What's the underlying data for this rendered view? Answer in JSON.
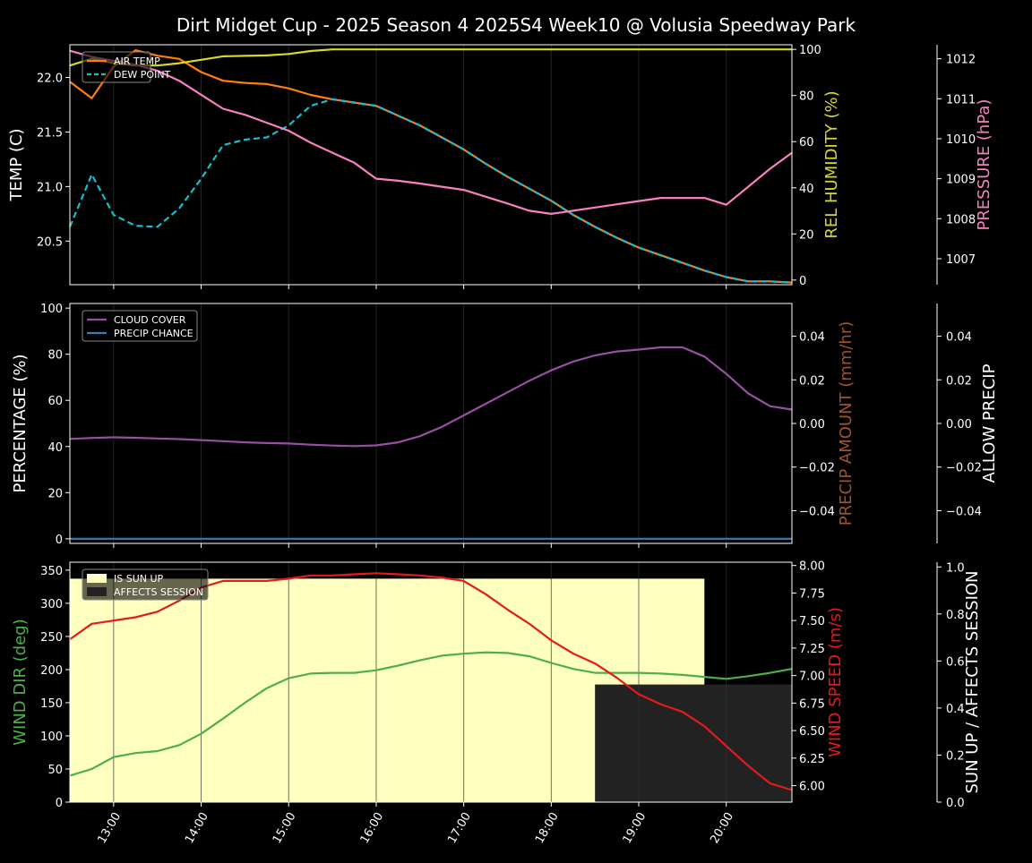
{
  "title": "Dirt Midget Cup - 2025 Season 4 2025S4 Week10 @ Volusia Speedway Park",
  "colors": {
    "background": "#000000",
    "axes": "#ffffff",
    "air_temp": "#ff7f0e",
    "dew_point": "#17becf",
    "humidity": "#d8d82a",
    "pressure": "#f781bf",
    "cloud": "#984ea3",
    "precip_chance": "#377eb8",
    "precip_amount": "#a0522d",
    "wind_dir": "#4daf4a",
    "wind_speed": "#e41a1c",
    "sun_up": "#ffffc0",
    "affects_session": "#222222",
    "grid": "#333333"
  },
  "x_ticks": [
    "13:00",
    "14:00",
    "15:00",
    "16:00",
    "17:00",
    "18:00",
    "19:00",
    "20:00"
  ],
  "chart_data": [
    {
      "type": "line",
      "x_hours": [
        12.5,
        12.75,
        13.0,
        13.25,
        13.5,
        13.75,
        14.0,
        14.25,
        14.5,
        14.75,
        15.0,
        15.25,
        15.5,
        15.75,
        16.0,
        16.25,
        16.5,
        16.75,
        17.0,
        17.25,
        17.5,
        17.75,
        18.0,
        18.25,
        18.5,
        18.75,
        19.0,
        19.25,
        19.5,
        19.75,
        20.0,
        20.25,
        20.5,
        20.75
      ],
      "left_axis": {
        "label": "TEMP (C)",
        "ylim": [
          20.1,
          22.3
        ],
        "ticks": [
          "20.5",
          "21.0",
          "21.5",
          "22.0"
        ],
        "tick_values": [
          20.5,
          21.0,
          21.5,
          22.0
        ]
      },
      "right_axis": {
        "label": "REL HUMIDITY (%)",
        "ylim": [
          -2,
          102
        ],
        "ticks": [
          "0",
          "20",
          "40",
          "60",
          "80",
          "100"
        ],
        "tick_values": [
          0,
          20,
          40,
          60,
          80,
          100
        ]
      },
      "far_axis": {
        "label": "PRESSURE (hPa)",
        "ylim": [
          1006.35,
          1012.35
        ],
        "ticks": [
          "1007",
          "1008",
          "1009",
          "1010",
          "1011",
          "1012"
        ],
        "tick_values": [
          1007,
          1008,
          1009,
          1010,
          1011,
          1012
        ]
      },
      "legend": [
        "AIR TEMP",
        "DEW POINT"
      ],
      "legend_placement": "top-left",
      "series": [
        {
          "name": "AIR TEMP",
          "axis": "left",
          "style": "solid",
          "color_key": "air_temp",
          "values": [
            21.96,
            21.81,
            22.1,
            22.25,
            22.2,
            22.17,
            22.05,
            21.97,
            21.95,
            21.94,
            21.9,
            21.84,
            21.8,
            21.77,
            21.74,
            21.65,
            21.56,
            21.45,
            21.34,
            21.21,
            21.09,
            20.98,
            20.87,
            20.74,
            20.63,
            20.53,
            20.44,
            20.37,
            20.3,
            20.23,
            20.17,
            20.13,
            20.13,
            20.12
          ]
        },
        {
          "name": "DEW POINT",
          "axis": "left",
          "style": "dashed",
          "color_key": "dew_point",
          "values": [
            20.63,
            21.11,
            20.74,
            20.64,
            20.63,
            20.8,
            21.07,
            21.38,
            21.43,
            21.45,
            21.56,
            21.74,
            21.8,
            21.77,
            21.74,
            21.65,
            21.56,
            21.45,
            21.34,
            21.21,
            21.09,
            20.98,
            20.87,
            20.74,
            20.63,
            20.53,
            20.44,
            20.37,
            20.3,
            20.23,
            20.17,
            20.13,
            20.13,
            20.12
          ]
        },
        {
          "axis": "right",
          "style": "solid",
          "color_key": "humidity",
          "values": [
            93,
            96,
            94,
            93,
            93,
            94,
            95.5,
            97,
            97.2,
            97.4,
            98,
            99.3,
            100,
            100,
            100,
            100,
            100,
            100,
            100,
            100,
            100,
            100,
            100,
            100,
            100,
            100,
            100,
            100,
            100,
            100,
            100,
            100,
            100,
            100
          ]
        },
        {
          "axis": "far",
          "style": "solid",
          "color_key": "pressure",
          "values": [
            1012.2,
            1012.05,
            1011.95,
            1011.85,
            1011.7,
            1011.45,
            1011.1,
            1010.75,
            1010.6,
            1010.4,
            1010.2,
            1009.9,
            1009.65,
            1009.4,
            1009.0,
            1008.95,
            1008.88,
            1008.8,
            1008.72,
            1008.55,
            1008.38,
            1008.2,
            1008.12,
            1008.2,
            1008.28,
            1008.36,
            1008.44,
            1008.52,
            1008.52,
            1008.52,
            1008.35,
            1008.8,
            1009.25,
            1009.65
          ]
        }
      ]
    },
    {
      "type": "line",
      "x_hours": [
        12.5,
        12.75,
        13.0,
        13.25,
        13.5,
        13.75,
        14.0,
        14.25,
        14.5,
        14.75,
        15.0,
        15.25,
        15.5,
        15.75,
        16.0,
        16.25,
        16.5,
        16.75,
        17.0,
        17.25,
        17.5,
        17.75,
        18.0,
        18.25,
        18.5,
        18.75,
        19.0,
        19.25,
        19.5,
        19.75,
        20.0,
        20.25,
        20.5,
        20.75
      ],
      "left_axis": {
        "label": "PERCENTAGE (%)",
        "ylim": [
          -2,
          102
        ],
        "ticks": [
          "0",
          "20",
          "40",
          "60",
          "80",
          "100"
        ],
        "tick_values": [
          0,
          20,
          40,
          60,
          80,
          100
        ]
      },
      "right_axis": {
        "label": "PRECIP AMOUNT (mm/hr)",
        "ylim": [
          -0.055,
          0.055
        ],
        "ticks": [
          "−0.04",
          "−0.02",
          "0.00",
          "0.02",
          "0.04"
        ],
        "tick_values": [
          -0.04,
          -0.02,
          0,
          0.02,
          0.04
        ]
      },
      "far_axis": {
        "label": "ALLOW PRECIP",
        "ylim": [
          -0.055,
          0.055
        ],
        "ticks": [
          "−0.04",
          "−0.02",
          "0.00",
          "0.02",
          "0.04"
        ],
        "tick_values": [
          -0.04,
          -0.02,
          0,
          0.02,
          0.04
        ]
      },
      "legend": [
        "CLOUD COVER",
        "PRECIP CHANCE"
      ],
      "legend_placement": "top-left",
      "series": [
        {
          "name": "CLOUD COVER",
          "axis": "left",
          "style": "solid",
          "color_key": "cloud",
          "values": [
            43.3,
            43.7,
            44.0,
            43.8,
            43.5,
            43.2,
            42.8,
            42.3,
            41.8,
            41.5,
            41.3,
            40.8,
            40.4,
            40.2,
            40.5,
            41.8,
            44.5,
            48.5,
            53.5,
            58.5,
            63.5,
            68.5,
            73.0,
            76.8,
            79.5,
            81.2,
            82.0,
            83.0,
            83.0,
            79.0,
            71.5,
            63.0,
            57.5,
            56.0
          ]
        },
        {
          "name": "PRECIP CHANCE",
          "axis": "left",
          "style": "solid",
          "color_key": "precip_chance",
          "values": [
            0,
            0,
            0,
            0,
            0,
            0,
            0,
            0,
            0,
            0,
            0,
            0,
            0,
            0,
            0,
            0,
            0,
            0,
            0,
            0,
            0,
            0,
            0,
            0,
            0,
            0,
            0,
            0,
            0,
            0,
            0,
            0,
            0,
            0
          ]
        }
      ]
    },
    {
      "type": "line",
      "x_hours": [
        12.5,
        12.75,
        13.0,
        13.25,
        13.5,
        13.75,
        14.0,
        14.25,
        14.5,
        14.75,
        15.0,
        15.25,
        15.5,
        15.75,
        16.0,
        16.25,
        16.5,
        16.75,
        17.0,
        17.25,
        17.5,
        17.75,
        18.0,
        18.25,
        18.5,
        18.75,
        19.0,
        19.25,
        19.5,
        19.75,
        20.0,
        20.25,
        20.5,
        20.75
      ],
      "left_axis": {
        "label": "WIND DIR (deg)",
        "ylim": [
          0,
          362
        ],
        "ticks": [
          "0",
          "50",
          "100",
          "150",
          "200",
          "250",
          "300",
          "350"
        ],
        "tick_values": [
          0,
          50,
          100,
          150,
          200,
          250,
          300,
          350
        ]
      },
      "right_axis": {
        "label": "WIND SPEED (m/s)",
        "ylim": [
          5.85,
          8.03
        ],
        "ticks": [
          "6.00",
          "6.25",
          "6.50",
          "6.75",
          "7.00",
          "7.25",
          "7.50",
          "7.75",
          "8.00"
        ],
        "tick_values": [
          6.0,
          6.25,
          6.5,
          6.75,
          7.0,
          7.25,
          7.5,
          7.75,
          8.0
        ]
      },
      "far_axis": {
        "label": "SUN UP / AFFECTS SESSION",
        "ylim": [
          0,
          1.02
        ],
        "ticks": [
          "0.0",
          "0.2",
          "0.4",
          "0.6",
          "0.8",
          "1.0"
        ],
        "tick_values": [
          0,
          0.2,
          0.4,
          0.6,
          0.8,
          1.0
        ]
      },
      "legend": [
        "IS SUN UP",
        "AFFECTS SESSION"
      ],
      "legend_placement": "top-left",
      "bands": [
        {
          "name": "IS SUN UP",
          "color_key": "sun_up",
          "x_start": 12.5,
          "x_end": 19.75,
          "value": 0.95
        },
        {
          "name": "AFFECTS SESSION",
          "color_key": "affects_session",
          "x_start": 18.5,
          "x_end": 20.75,
          "value": 0.5
        }
      ],
      "series": [
        {
          "axis": "left",
          "style": "solid",
          "color_key": "wind_dir",
          "values": [
            40,
            50,
            68,
            74,
            77,
            86,
            103,
            126,
            150,
            172,
            187,
            194,
            195,
            195,
            199,
            206,
            214,
            221,
            224,
            226,
            225,
            220,
            210,
            201,
            195,
            195,
            195,
            194,
            192,
            189,
            186,
            190,
            195,
            201
          ]
        },
        {
          "axis": "right",
          "style": "solid",
          "color_key": "wind_speed",
          "values": [
            7.33,
            7.47,
            7.5,
            7.53,
            7.58,
            7.68,
            7.8,
            7.86,
            7.86,
            7.86,
            7.88,
            7.91,
            7.91,
            7.92,
            7.93,
            7.92,
            7.91,
            7.89,
            7.86,
            7.74,
            7.6,
            7.47,
            7.32,
            7.2,
            7.11,
            6.98,
            6.83,
            6.74,
            6.67,
            6.54,
            6.36,
            6.18,
            6.02,
            5.96
          ]
        }
      ]
    }
  ]
}
